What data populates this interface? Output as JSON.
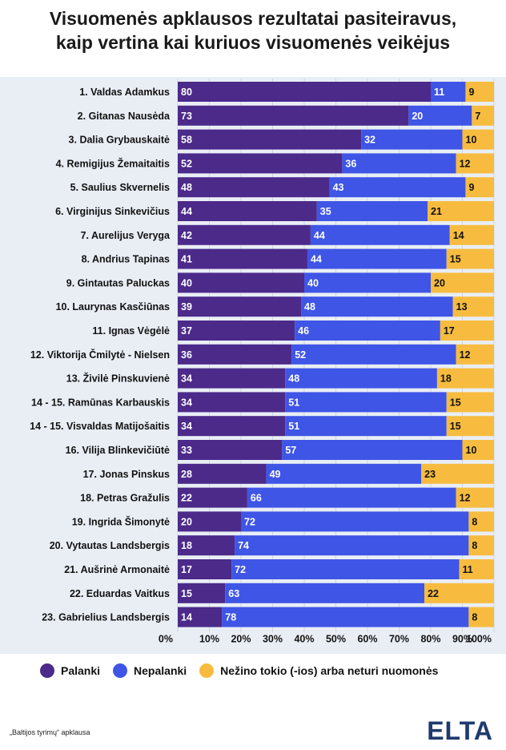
{
  "title_line1": "Visuomenės apklausos rezultatai pasiteiravus,",
  "title_line2": "kaip vertina kai kuriuos visuomenės veikėjus",
  "source": "„Baltijos tyrimų“ apklausa",
  "logo": "ELTA",
  "colors": {
    "palanki": "#4b2a8a",
    "nepalanki": "#3f55e6",
    "nezino": "#f7bc3f",
    "panel": "#e9eef5"
  },
  "chart_data": {
    "type": "bar",
    "orientation": "horizontal",
    "stacked": true,
    "title": "Visuomenės apklausos rezultatai pasiteiravus, kaip vertina kai kuriuos visuomenės veikėjus",
    "categories": [
      "1. Valdas Adamkus",
      "2. Gitanas Nausėda",
      "3. Dalia Grybauskaitė",
      "4. Remigijus Žemaitaitis",
      "5. Saulius Skvernelis",
      "6. Virginijus Sinkevičius",
      "7. Aurelijus Veryga",
      "8. Andrius Tapinas",
      "9. Gintautas Paluckas",
      "10. Laurynas Kasčiūnas",
      "11. Ignas Vėgėlė",
      "12. Viktorija Čmilytė - Nielsen",
      "13. Živilė Pinskuvienė",
      "14 - 15. Ramūnas Karbauskis",
      "14 - 15. Visvaldas Matijošaitis",
      "16. Vilija Blinkevičiūtė",
      "17. Jonas Pinskus",
      "18. Petras Gražulis",
      "19. Ingrida Šimonytė",
      "20. Vytautas Landsbergis",
      "21. Aušrinė Armonaitė",
      "22. Eduardas Vaitkus",
      "23. Gabrielius Landsbergis"
    ],
    "series": [
      {
        "name": "Palanki",
        "values": [
          80,
          73,
          58,
          52,
          48,
          44,
          42,
          41,
          40,
          39,
          37,
          36,
          34,
          34,
          34,
          33,
          28,
          22,
          20,
          18,
          17,
          15,
          14
        ]
      },
      {
        "name": "Nepalanki",
        "values": [
          11,
          20,
          32,
          36,
          43,
          35,
          44,
          44,
          40,
          48,
          46,
          52,
          48,
          51,
          51,
          57,
          49,
          66,
          72,
          74,
          72,
          63,
          78
        ]
      },
      {
        "name": "Nežino tokio (-ios) arba neturi nuomonės",
        "values": [
          9,
          7,
          10,
          12,
          9,
          21,
          14,
          15,
          20,
          13,
          17,
          12,
          18,
          15,
          15,
          10,
          23,
          12,
          8,
          8,
          11,
          22,
          8
        ]
      }
    ],
    "x_ticks": [
      "0%",
      "10%",
      "20%",
      "30%",
      "40%",
      "50%",
      "60%",
      "70%",
      "80%",
      "90%",
      "100%"
    ],
    "xlim": [
      0,
      100
    ],
    "grid": true,
    "legend_position": "bottom"
  }
}
